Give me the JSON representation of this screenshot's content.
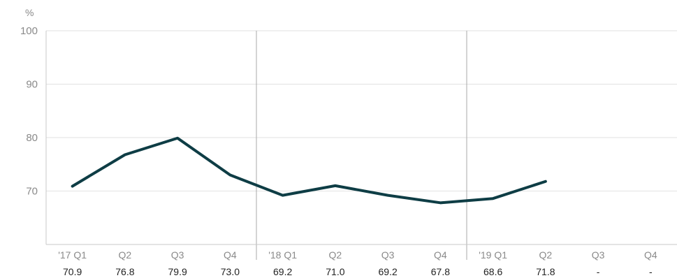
{
  "chart_data": {
    "type": "line",
    "unit": "%",
    "categories": [
      "'17 Q1",
      "Q2",
      "Q3",
      "Q4",
      "'18 Q1",
      "Q2",
      "Q3",
      "Q4",
      "'19 Q1",
      "Q2",
      "Q3",
      "Q4"
    ],
    "series": [
      {
        "values": [
          70.9,
          76.8,
          79.9,
          73.0,
          69.2,
          71.0,
          69.2,
          67.8,
          68.6,
          71.8,
          null,
          null
        ]
      }
    ],
    "value_labels": [
      "70.9",
      "76.8",
      "79.9",
      "73.0",
      "69.2",
      "71.0",
      "69.2",
      "67.8",
      "68.6",
      "71.8",
      "-",
      "-"
    ],
    "yticks": [
      70,
      80,
      90,
      100
    ],
    "ylim": [
      60,
      100
    ],
    "grid": true,
    "year_dividers_after_category": [
      3,
      7
    ],
    "colors": {
      "line": "#0e3d45",
      "grid": "#e2e2e2",
      "axis": "#c8c8c8",
      "divider": "#a9a9a9"
    }
  }
}
